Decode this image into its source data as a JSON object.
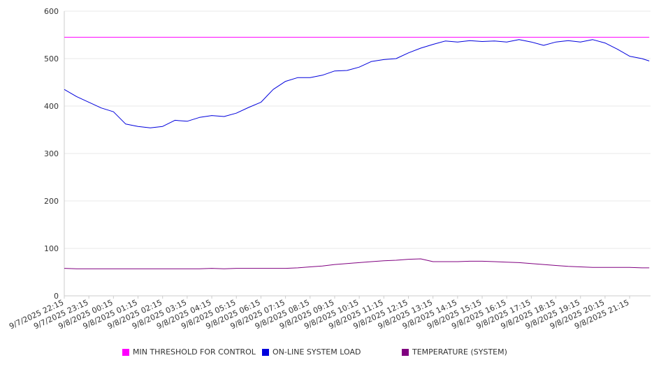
{
  "chart_data": {
    "type": "line",
    "title": "",
    "xlabel": "",
    "ylabel": "",
    "ylim": [
      0,
      600
    ],
    "yticks": [
      0,
      100,
      200,
      300,
      400,
      500,
      600
    ],
    "grid": true,
    "legend_position": "bottom",
    "xtick_labels": [
      "9/7/2025 22:15",
      "9/7/2025 23:15",
      "9/8/2025 00:15",
      "9/8/2025 01:15",
      "9/8/2025 02:15",
      "9/8/2025 03:15",
      "9/8/2025 04:15",
      "9/8/2025 05:15",
      "9/8/2025 06:15",
      "9/8/2025 07:15",
      "9/8/2025 08:15",
      "9/8/2025 09:15",
      "9/8/2025 10:15",
      "9/8/2025 11:15",
      "9/8/2025 12:15",
      "9/8/2025 13:15",
      "9/8/2025 14:15",
      "9/8/2025 15:15",
      "9/8/2025 16:15",
      "9/8/2025 17:15",
      "9/8/2025 18:15",
      "9/8/2025 19:15",
      "9/8/2025 20:15",
      "9/8/2025 21:15"
    ],
    "x_hours": [
      0,
      0.5,
      1,
      1.5,
      2,
      2.5,
      3,
      3.5,
      4,
      4.5,
      5,
      5.5,
      6,
      6.5,
      7,
      7.5,
      8,
      8.5,
      9,
      9.5,
      10,
      10.5,
      11,
      11.5,
      12,
      12.5,
      13,
      13.5,
      14,
      14.5,
      15,
      15.5,
      16,
      16.5,
      17,
      17.5,
      18,
      18.5,
      19,
      19.5,
      20,
      20.5,
      21,
      21.5,
      22,
      22.5,
      23,
      23.5,
      23.8
    ],
    "series": [
      {
        "name": "MIN THRESHOLD FOR CONTROL",
        "color": "#ff00ff",
        "values": [
          545,
          545,
          545,
          545,
          545,
          545,
          545,
          545,
          545,
          545,
          545,
          545,
          545,
          545,
          545,
          545,
          545,
          545,
          545,
          545,
          545,
          545,
          545,
          545,
          545,
          545,
          545,
          545,
          545,
          545,
          545,
          545,
          545,
          545,
          545,
          545,
          545,
          545,
          545,
          545,
          545,
          545,
          545,
          545,
          545,
          545,
          545,
          545,
          545
        ]
      },
      {
        "name": "ON-LINE SYSTEM LOAD",
        "color": "#0000dd",
        "values": [
          435,
          420,
          408,
          396,
          388,
          362,
          357,
          354,
          357,
          370,
          368,
          376,
          380,
          378,
          385,
          397,
          408,
          435,
          452,
          460,
          460,
          465,
          474,
          475,
          482,
          494,
          498,
          500,
          512,
          522,
          530,
          537,
          535,
          538,
          536,
          537,
          535,
          540,
          535,
          528,
          535,
          538,
          535,
          540,
          533,
          520,
          505,
          500,
          495
        ]
      },
      {
        "name": "TEMPERATURE (SYSTEM)",
        "color": "#800080",
        "values": [
          58,
          57,
          57,
          57,
          57,
          57,
          57,
          57,
          57,
          57,
          57,
          57,
          58,
          57,
          58,
          58,
          58,
          58,
          58,
          59,
          61,
          63,
          66,
          68,
          70,
          72,
          74,
          75,
          77,
          78,
          72,
          72,
          72,
          73,
          73,
          72,
          71,
          70,
          68,
          66,
          64,
          62,
          61,
          60,
          60,
          60,
          60,
          59,
          59
        ]
      }
    ]
  }
}
